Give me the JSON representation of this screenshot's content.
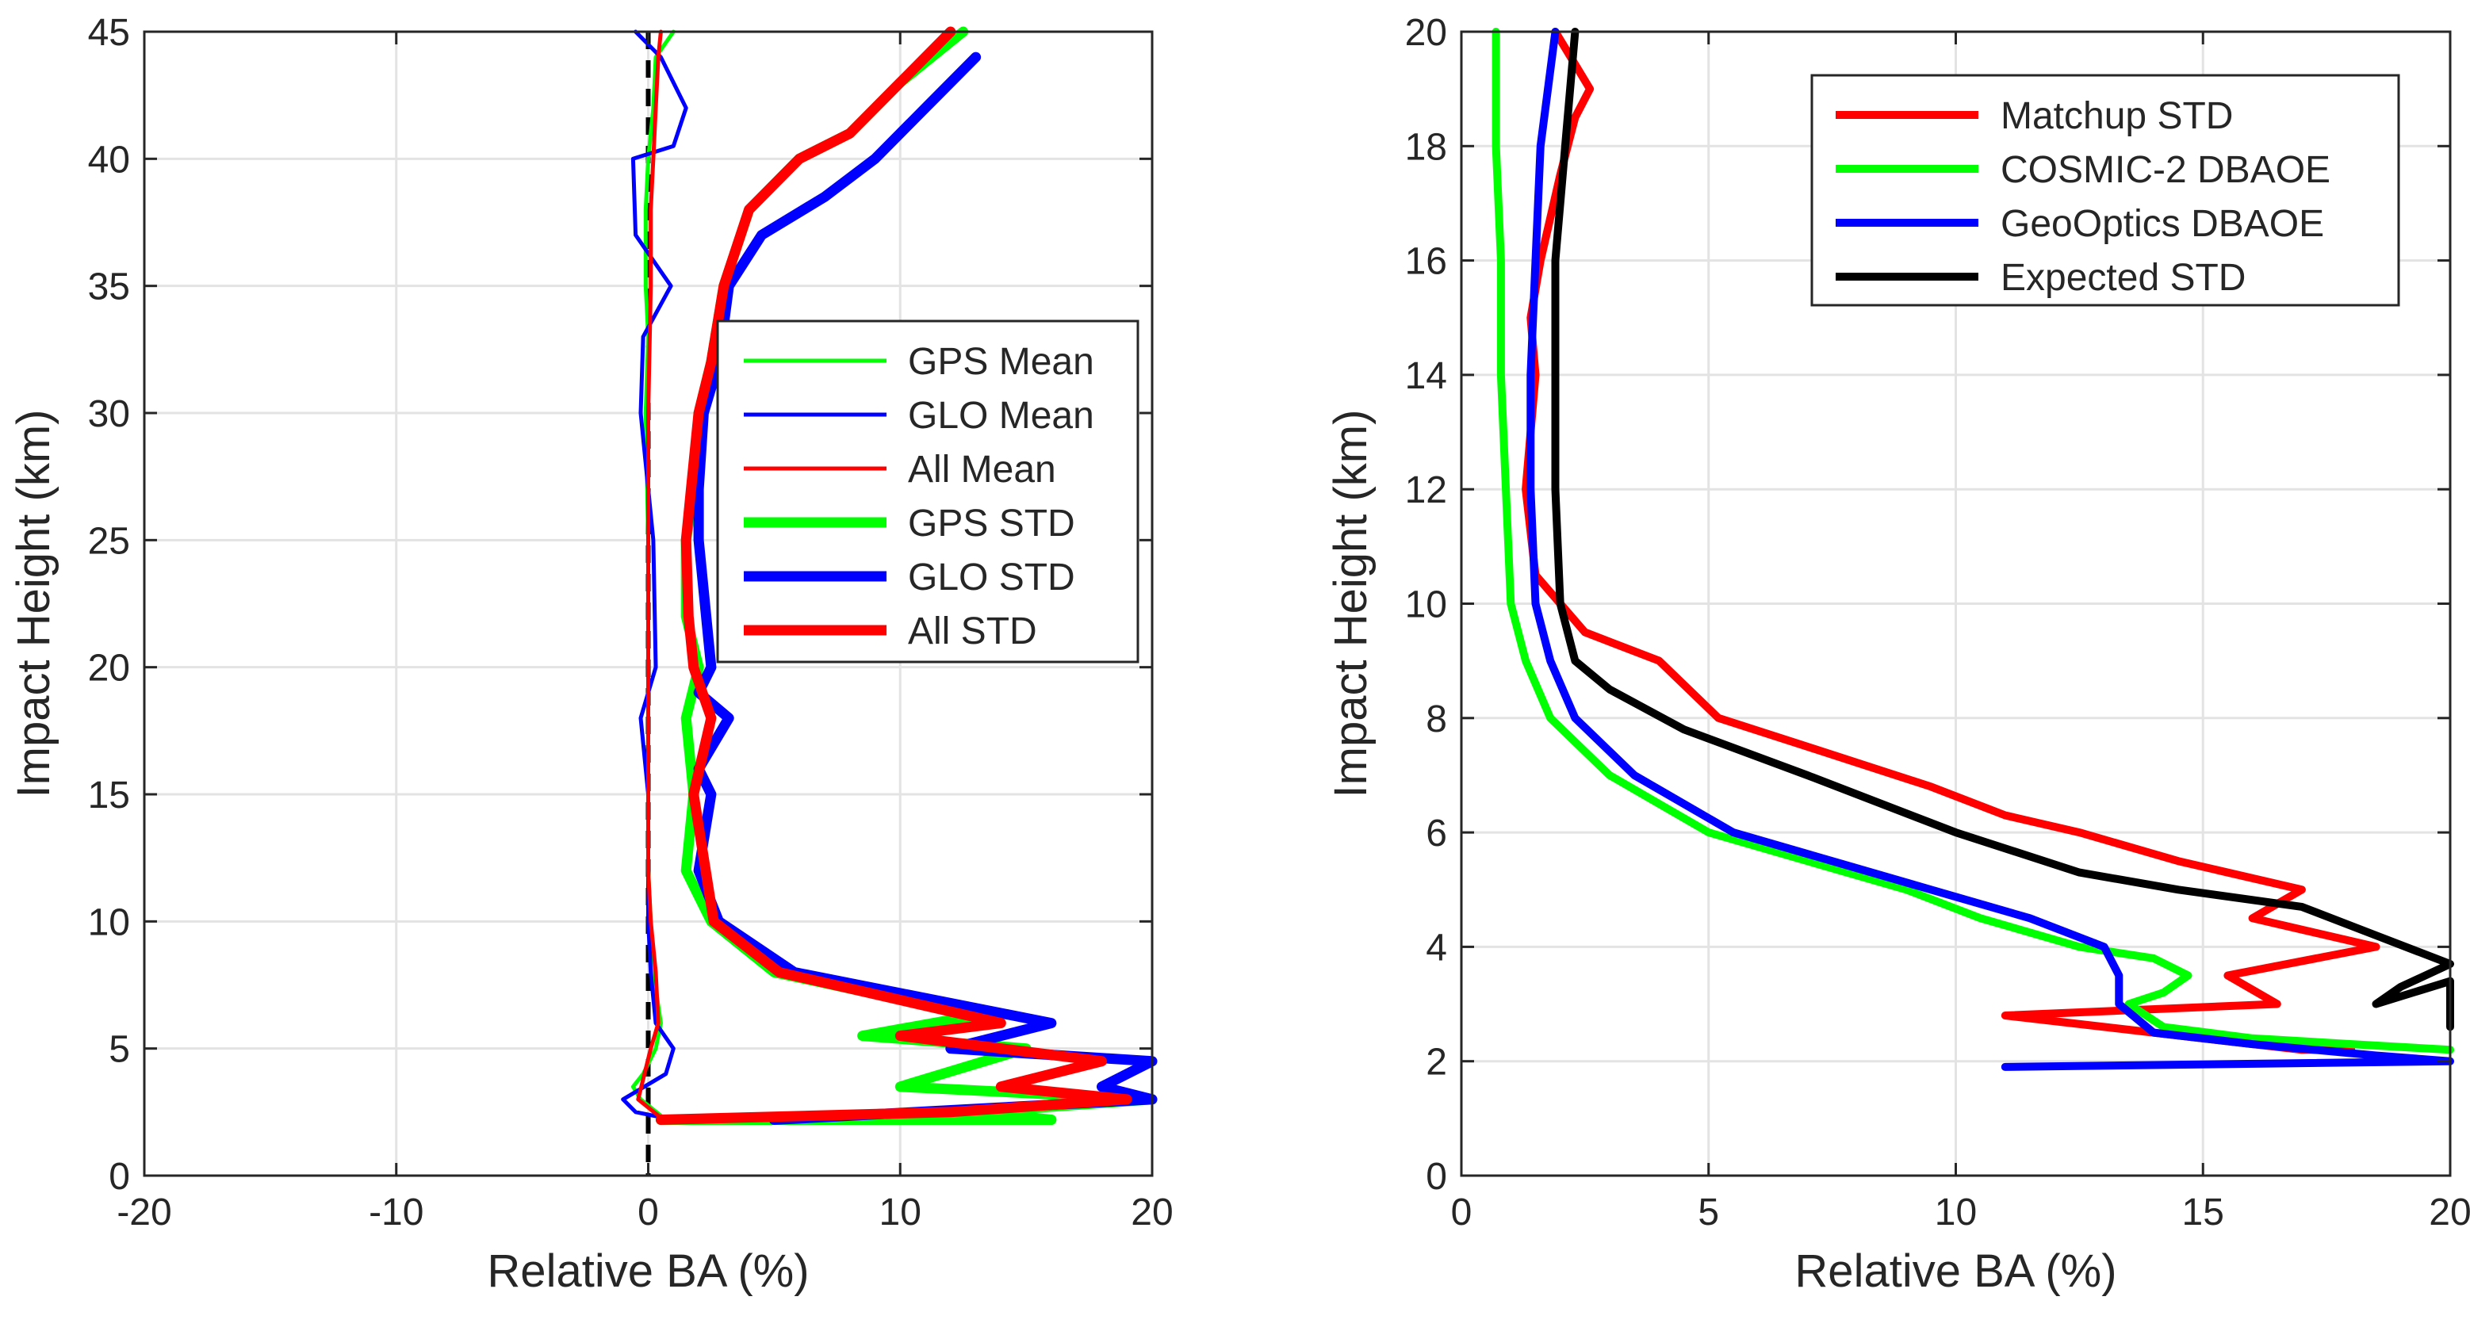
{
  "chart_data": [
    {
      "type": "line",
      "xlabel": "Relative BA (%)",
      "ylabel": "Impact Height (km)",
      "xlim": [
        -20,
        20
      ],
      "ylim": [
        0,
        45
      ],
      "xticks": [
        -20,
        -10,
        0,
        10,
        20
      ],
      "yticks": [
        0,
        5,
        10,
        15,
        20,
        25,
        30,
        35,
        40,
        45
      ],
      "grid": true,
      "legend_position": "right",
      "series": [
        {
          "name": "GPS Mean",
          "color": "#00ff00",
          "style": "thin",
          "x": [
            1.0,
            0.3,
            0.2,
            0.0,
            -0.1,
            -0.1,
            0.0,
            -0.1,
            0.0,
            0.0,
            0.0,
            0.0,
            0.0,
            0.1,
            0.2,
            0.5,
            0.3,
            -0.2,
            -0.6,
            -0.3,
            0.7
          ],
          "y": [
            45,
            44,
            42,
            40,
            38,
            35,
            33,
            30,
            25,
            20,
            18,
            15,
            12,
            10,
            8,
            6,
            5,
            4,
            3.5,
            3,
            2.2
          ]
        },
        {
          "name": "GLO Mean",
          "color": "#0000ff",
          "style": "thin",
          "x": [
            -0.5,
            0.5,
            1.5,
            1.0,
            -0.6,
            -0.5,
            0.9,
            -0.2,
            -0.3,
            0.2,
            0.3,
            -0.3,
            0.0,
            0.0,
            0.0,
            0.1,
            0.3,
            1.0,
            0.7,
            -1.0,
            -0.5,
            1.0
          ],
          "y": [
            45,
            44,
            42,
            40.5,
            40,
            37,
            35,
            33,
            30,
            25,
            20,
            18,
            15,
            12,
            10,
            8,
            6,
            5,
            4,
            3,
            2.5,
            2.2
          ]
        },
        {
          "name": "All Mean",
          "color": "#ff0000",
          "style": "thin",
          "x": [
            0.5,
            0.4,
            0.3,
            0.2,
            0.1,
            0.1,
            0.0,
            0.0,
            0.0,
            0.0,
            0.0,
            0.0,
            0.1,
            0.3,
            0.4,
            0.1,
            -0.4,
            0.6
          ],
          "y": [
            45,
            44,
            42,
            40,
            38,
            35,
            30,
            25,
            20,
            18,
            15,
            12,
            10,
            8,
            6,
            5,
            3,
            2.2
          ]
        },
        {
          "name": "GPS STD",
          "color": "#00ff00",
          "style": "thick",
          "x": [
            12.5,
            10.0,
            8.0,
            6.0,
            4.0,
            3.0,
            2.5,
            2.0,
            1.8,
            1.5,
            1.5,
            2.0,
            1.5,
            1.8,
            1.5,
            2.5,
            5.0,
            13.0,
            8.5,
            15.0,
            10.0,
            20.0,
            13.0,
            16.0,
            0.5
          ],
          "y": [
            45,
            43,
            41,
            40,
            38,
            35,
            32,
            30,
            27,
            25,
            22,
            20,
            18,
            15,
            12,
            10,
            8,
            6.3,
            5.5,
            5,
            3.5,
            3,
            2.5,
            2.2,
            2.2
          ]
        },
        {
          "name": "GLO STD",
          "color": "#0000ff",
          "style": "thick",
          "x": [
            13.0,
            11.0,
            9.0,
            7.0,
            4.5,
            3.2,
            2.8,
            2.2,
            2.0,
            2.0,
            2.5,
            2.0,
            3.2,
            2.0,
            2.5,
            2.0,
            2.8,
            5.8,
            16.0,
            12.0,
            20.0,
            18.0,
            20.0,
            5.0
          ],
          "y": [
            44,
            42,
            40,
            38.5,
            37,
            35,
            32,
            30,
            27,
            25,
            20,
            19,
            18,
            16,
            15,
            12,
            10,
            8,
            6,
            5,
            4.5,
            3.5,
            3,
            2.2
          ]
        },
        {
          "name": "All STD",
          "color": "#ff0000",
          "style": "thick",
          "x": [
            12.0,
            10.0,
            8.0,
            6.0,
            4.0,
            3.0,
            2.5,
            2.0,
            1.7,
            1.5,
            1.6,
            1.8,
            2.5,
            1.8,
            2.6,
            5.2,
            14.0,
            10.0,
            18.0,
            14.0,
            19.0,
            12.0,
            0.5
          ],
          "y": [
            45,
            43,
            41,
            40,
            38,
            35,
            32,
            30,
            27,
            25,
            22,
            20,
            18,
            15,
            10,
            8,
            6,
            5.5,
            4.5,
            3.5,
            3,
            2.5,
            2.2
          ]
        }
      ],
      "legend": [
        "GPS Mean",
        "GLO Mean",
        "All Mean",
        "GPS STD",
        "GLO STD",
        "All STD"
      ]
    },
    {
      "type": "line",
      "xlabel": "Relative BA (%)",
      "ylabel": "Impact Height (km)",
      "xlim": [
        0,
        20
      ],
      "ylim": [
        0,
        20
      ],
      "xticks": [
        0,
        5,
        10,
        15,
        20
      ],
      "yticks": [
        0,
        2,
        4,
        6,
        8,
        10,
        12,
        14,
        16,
        18,
        20
      ],
      "grid": true,
      "legend_position": "top-right",
      "series": [
        {
          "name": "Matchup STD",
          "color": "#ff0000",
          "x": [
            1.9,
            2.6,
            2.3,
            2.0,
            1.6,
            1.4,
            1.5,
            1.3,
            1.5,
            2.5,
            4.0,
            5.2,
            7.0,
            9.5,
            11.0,
            12.5,
            14.5,
            17.0,
            16.0,
            18.5,
            15.5,
            16.5,
            11.0,
            14.0,
            17.0,
            18.0
          ],
          "y": [
            20,
            19,
            18.5,
            17.5,
            16,
            15,
            14,
            12,
            10.5,
            9.5,
            9,
            8,
            7.5,
            6.8,
            6.3,
            6,
            5.5,
            5,
            4.5,
            4,
            3.5,
            3,
            2.8,
            2.5,
            2.2,
            2.2
          ]
        },
        {
          "name": "COSMIC-2 DBAOE",
          "color": "#00ff00",
          "x": [
            0.7,
            0.7,
            0.8,
            0.8,
            0.9,
            1.0,
            1.3,
            1.8,
            3.0,
            5.0,
            7.0,
            9.0,
            10.5,
            12.5,
            14.0,
            14.7,
            14.2,
            13.5,
            14.2,
            16.0,
            18.0,
            20.0
          ],
          "y": [
            20,
            18,
            16,
            14,
            12,
            10,
            9,
            8,
            7,
            6,
            5.5,
            5,
            4.5,
            4,
            3.8,
            3.5,
            3.2,
            3,
            2.6,
            2.4,
            2.3,
            2.2
          ]
        },
        {
          "name": "GeoOptics DBAOE",
          "color": "#0000ff",
          "x": [
            1.9,
            1.6,
            1.5,
            1.4,
            1.4,
            1.5,
            1.8,
            2.3,
            3.5,
            5.5,
            7.5,
            9.5,
            11.5,
            13.0,
            13.3,
            13.3,
            14.0,
            16.0,
            18.5,
            20.0,
            11.0
          ],
          "y": [
            20,
            18,
            16,
            14,
            12,
            10,
            9,
            8,
            7,
            6,
            5.5,
            5,
            4.5,
            4,
            3.5,
            3,
            2.5,
            2.3,
            2.1,
            2.0,
            1.9
          ]
        },
        {
          "name": "Expected STD",
          "color": "#000000",
          "x": [
            2.3,
            2.1,
            1.9,
            1.9,
            1.9,
            2.0,
            2.3,
            3.0,
            4.5,
            7.0,
            10.0,
            12.5,
            14.5,
            17.0,
            18.5,
            20.0,
            19.0,
            18.5,
            20.0,
            20.0
          ],
          "y": [
            20,
            18,
            16,
            14,
            12,
            10,
            9,
            8.5,
            7.8,
            7,
            6,
            5.3,
            5,
            4.7,
            4.2,
            3.7,
            3.3,
            3.0,
            3.4,
            2.6
          ]
        }
      ],
      "legend": [
        "Matchup STD",
        "COSMIC-2 DBAOE",
        "GeoOptics DBAOE",
        "Expected STD"
      ]
    }
  ]
}
